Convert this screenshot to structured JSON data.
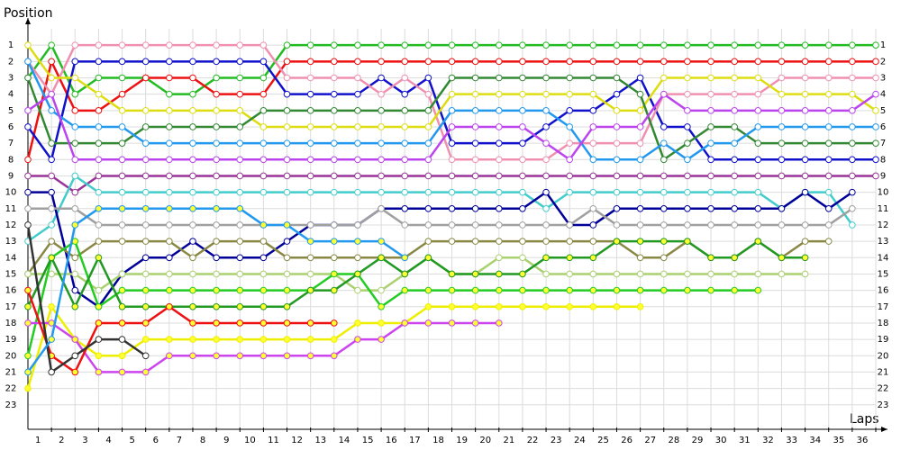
{
  "chart_data": {
    "type": "line",
    "y_label": "Position",
    "x_label": "Laps",
    "x": [
      0,
      1,
      2,
      3,
      4,
      5,
      6,
      7,
      8,
      9,
      10,
      11,
      12,
      13,
      14,
      15,
      16,
      17,
      18,
      19,
      20,
      21,
      22,
      23,
      24,
      25,
      26,
      27,
      28,
      29,
      30,
      31,
      32,
      33,
      34,
      35,
      36
    ],
    "xlim": [
      0,
      36
    ],
    "ylim": [
      24.5,
      0
    ],
    "y_inverted": true,
    "grid": true,
    "xticks": [
      1,
      2,
      3,
      4,
      5,
      6,
      7,
      8,
      9,
      10,
      11,
      12,
      13,
      14,
      15,
      16,
      17,
      18,
      19,
      20,
      21,
      22,
      23,
      24,
      25,
      26,
      27,
      28,
      29,
      30,
      31,
      32,
      33,
      34,
      35,
      36
    ],
    "yticks": [
      1,
      2,
      3,
      4,
      5,
      6,
      7,
      8,
      9,
      10,
      11,
      12,
      13,
      14,
      15,
      16,
      17,
      18,
      19,
      20,
      21,
      22,
      23
    ],
    "series": [
      {
        "color": "#22bb22",
        "marker_color": "#ffffff",
        "values": [
          3,
          1,
          4,
          3,
          3,
          3,
          4,
          4,
          3,
          3,
          3,
          1,
          1,
          1,
          1,
          1,
          1,
          1,
          1,
          1,
          1,
          1,
          1,
          1,
          1,
          1,
          1,
          1,
          1,
          1,
          1,
          1,
          1,
          1,
          1,
          1,
          1
        ]
      },
      {
        "color": "#ee1111",
        "marker_color": "#ffffff",
        "values": [
          8,
          2,
          5,
          5,
          4,
          3,
          3,
          3,
          4,
          4,
          4,
          2,
          2,
          2,
          2,
          2,
          2,
          2,
          2,
          2,
          2,
          2,
          2,
          2,
          2,
          2,
          2,
          2,
          2,
          2,
          2,
          2,
          2,
          2,
          2,
          2,
          2
        ]
      },
      {
        "color": "#1111cc",
        "marker_color": "#ffffff",
        "values": [
          6,
          8,
          2,
          2,
          2,
          2,
          2,
          2,
          2,
          2,
          2,
          4,
          4,
          4,
          4,
          3,
          4,
          3,
          7,
          7,
          7,
          7,
          6,
          5,
          5,
          4,
          3,
          6,
          6,
          8,
          8,
          8,
          8,
          8,
          8,
          8,
          8
        ]
      },
      {
        "color": "#f090b0",
        "marker_color": "#ffffff",
        "values": [
          2,
          4,
          1,
          1,
          1,
          1,
          1,
          1,
          1,
          1,
          1,
          3,
          3,
          3,
          3,
          4,
          3,
          4,
          8,
          8,
          8,
          8,
          8,
          7,
          7,
          7,
          7,
          4,
          4,
          4,
          4,
          4,
          3,
          3,
          3,
          3,
          3
        ]
      },
      {
        "color": "#dddd11",
        "marker_color": "#ffffff",
        "values": [
          1,
          3,
          3,
          4,
          5,
          5,
          5,
          5,
          5,
          5,
          6,
          6,
          6,
          6,
          6,
          6,
          6,
          6,
          4,
          4,
          4,
          4,
          4,
          4,
          4,
          5,
          5,
          3,
          3,
          3,
          3,
          3,
          4,
          4,
          4,
          4,
          5
        ]
      },
      {
        "color": "#338833",
        "marker_color": "#ffffff",
        "values": [
          3,
          7,
          7,
          7,
          7,
          6,
          6,
          6,
          6,
          6,
          5,
          5,
          5,
          5,
          5,
          5,
          5,
          5,
          3,
          3,
          3,
          3,
          3,
          3,
          3,
          3,
          4,
          8,
          7,
          6,
          6,
          7,
          7,
          7,
          7,
          7,
          7
        ]
      },
      {
        "color": "#2299ee",
        "marker_color": "#ffffff",
        "values": [
          2,
          5,
          6,
          6,
          6,
          7,
          7,
          7,
          7,
          7,
          7,
          7,
          7,
          7,
          7,
          7,
          7,
          7,
          5,
          5,
          5,
          5,
          5,
          6,
          8,
          8,
          8,
          7,
          8,
          7,
          7,
          6,
          6,
          6,
          6,
          6,
          6
        ]
      },
      {
        "color": "#bb44ee",
        "marker_color": "#ffffff",
        "values": [
          5,
          4,
          8,
          8,
          8,
          8,
          8,
          8,
          8,
          8,
          8,
          8,
          8,
          8,
          8,
          8,
          8,
          8,
          6,
          6,
          6,
          6,
          7,
          8,
          6,
          6,
          6,
          4,
          5,
          5,
          5,
          5,
          5,
          5,
          5,
          5,
          4
        ]
      },
      {
        "color": "#993399",
        "marker_color": "#ffffff",
        "values": [
          9,
          9,
          10,
          9,
          9,
          9,
          9,
          9,
          9,
          9,
          9,
          9,
          9,
          9,
          9,
          9,
          9,
          9,
          9,
          9,
          9,
          9,
          9,
          9,
          9,
          9,
          9,
          9,
          9,
          9,
          9,
          9,
          9,
          9,
          9,
          9,
          9
        ]
      },
      {
        "color": "#44cccc",
        "marker_color": "#ffffff",
        "values": [
          13,
          12,
          9,
          10,
          10,
          10,
          10,
          10,
          10,
          10,
          10,
          10,
          10,
          10,
          10,
          10,
          10,
          10,
          10,
          10,
          10,
          10,
          11,
          10,
          10,
          10,
          10,
          10,
          10,
          10,
          10,
          10,
          11,
          10,
          10,
          12,
          null
        ]
      },
      {
        "color": "#000099",
        "marker_color": "#ffffff",
        "values": [
          10,
          10,
          16,
          17,
          15,
          14,
          14,
          13,
          14,
          14,
          14,
          13,
          12,
          12,
          12,
          11,
          11,
          11,
          11,
          11,
          11,
          11,
          10,
          12,
          12,
          11,
          11,
          11,
          11,
          11,
          11,
          11,
          11,
          10,
          11,
          10,
          null
        ]
      },
      {
        "color": "#a0a0a0",
        "marker_color": "#ffffff",
        "values": [
          11,
          11,
          11,
          12,
          12,
          12,
          12,
          12,
          12,
          12,
          12,
          12,
          12,
          12,
          12,
          11,
          12,
          12,
          12,
          12,
          12,
          12,
          12,
          12,
          11,
          12,
          12,
          12,
          12,
          12,
          12,
          12,
          12,
          12,
          12,
          11,
          null
        ]
      },
      {
        "color": "#888844",
        "marker_color": "#ffffff",
        "values": [
          15,
          13,
          14,
          13,
          13,
          13,
          13,
          14,
          13,
          13,
          13,
          14,
          14,
          14,
          14,
          14,
          14,
          13,
          13,
          13,
          13,
          13,
          13,
          13,
          13,
          13,
          14,
          14,
          13,
          14,
          14,
          13,
          14,
          13,
          13,
          null,
          null
        ]
      },
      {
        "color": "#aad070",
        "marker_color": "#ffffff",
        "values": [
          15,
          15,
          15,
          16,
          15,
          15,
          15,
          15,
          15,
          15,
          15,
          15,
          15,
          15,
          16,
          16,
          15,
          14,
          15,
          15,
          14,
          14,
          15,
          15,
          15,
          15,
          15,
          15,
          15,
          15,
          15,
          15,
          15,
          15,
          null,
          null,
          null
        ]
      },
      {
        "color": "#22cc22",
        "marker_color": "#ffff33",
        "values": [
          20,
          14,
          13,
          17,
          16,
          16,
          16,
          16,
          16,
          16,
          16,
          16,
          16,
          15,
          15,
          17,
          16,
          16,
          16,
          16,
          16,
          16,
          16,
          16,
          16,
          16,
          16,
          16,
          16,
          16,
          16,
          16,
          null,
          null,
          null,
          null,
          null
        ]
      },
      {
        "color": "#229922",
        "marker_color": "#ffff33",
        "values": [
          17,
          14,
          17,
          14,
          17,
          17,
          17,
          17,
          17,
          17,
          17,
          17,
          16,
          16,
          15,
          14,
          15,
          14,
          15,
          15,
          15,
          15,
          14,
          14,
          14,
          13,
          13,
          13,
          13,
          14,
          14,
          13,
          14,
          14,
          null,
          null,
          null
        ]
      },
      {
        "color": "#eeee00",
        "marker_color": "#ffff33",
        "values": [
          22,
          17,
          19,
          20,
          20,
          19,
          19,
          19,
          19,
          19,
          19,
          19,
          19,
          19,
          18,
          18,
          18,
          17,
          17,
          17,
          17,
          17,
          17,
          17,
          17,
          17,
          17,
          null,
          null,
          null,
          null,
          null,
          null,
          null,
          null,
          null,
          null
        ]
      },
      {
        "color": "#cc44ee",
        "marker_color": "#ffff33",
        "values": [
          18,
          18,
          19,
          21,
          21,
          21,
          20,
          20,
          20,
          20,
          20,
          20,
          20,
          20,
          19,
          19,
          18,
          18,
          18,
          18,
          18,
          null,
          null,
          null,
          null,
          null,
          null,
          null,
          null,
          null,
          null,
          null,
          null,
          null,
          null,
          null,
          null
        ]
      },
      {
        "color": "#ee1111",
        "marker_color": "#ffff33",
        "values": [
          16,
          20,
          21,
          18,
          18,
          18,
          17,
          18,
          18,
          18,
          18,
          18,
          18,
          18,
          null,
          null,
          null,
          null,
          null,
          null,
          null,
          null,
          null,
          null,
          null,
          null,
          null,
          null,
          null,
          null,
          null,
          null,
          null,
          null,
          null,
          null,
          null
        ]
      },
      {
        "color": "#333333",
        "marker_color": "#ffffff",
        "values": [
          12,
          21,
          20,
          19,
          19,
          20,
          null,
          null,
          null,
          null,
          null,
          null,
          null,
          null,
          null,
          null,
          null,
          null,
          null,
          null,
          null,
          null,
          null,
          null,
          null,
          null,
          null,
          null,
          null,
          null,
          null,
          null,
          null,
          null,
          null,
          null,
          null
        ]
      },
      {
        "color": "#2299ee",
        "marker_color": "#ffff33",
        "values": [
          21,
          19,
          12,
          11,
          11,
          11,
          11,
          11,
          11,
          11,
          12,
          12,
          13,
          13,
          13,
          13,
          14,
          null,
          null,
          null,
          null,
          null,
          null,
          null,
          null,
          null,
          null,
          null,
          null,
          null,
          null,
          null,
          null,
          null,
          null,
          null,
          null
        ]
      }
    ]
  }
}
